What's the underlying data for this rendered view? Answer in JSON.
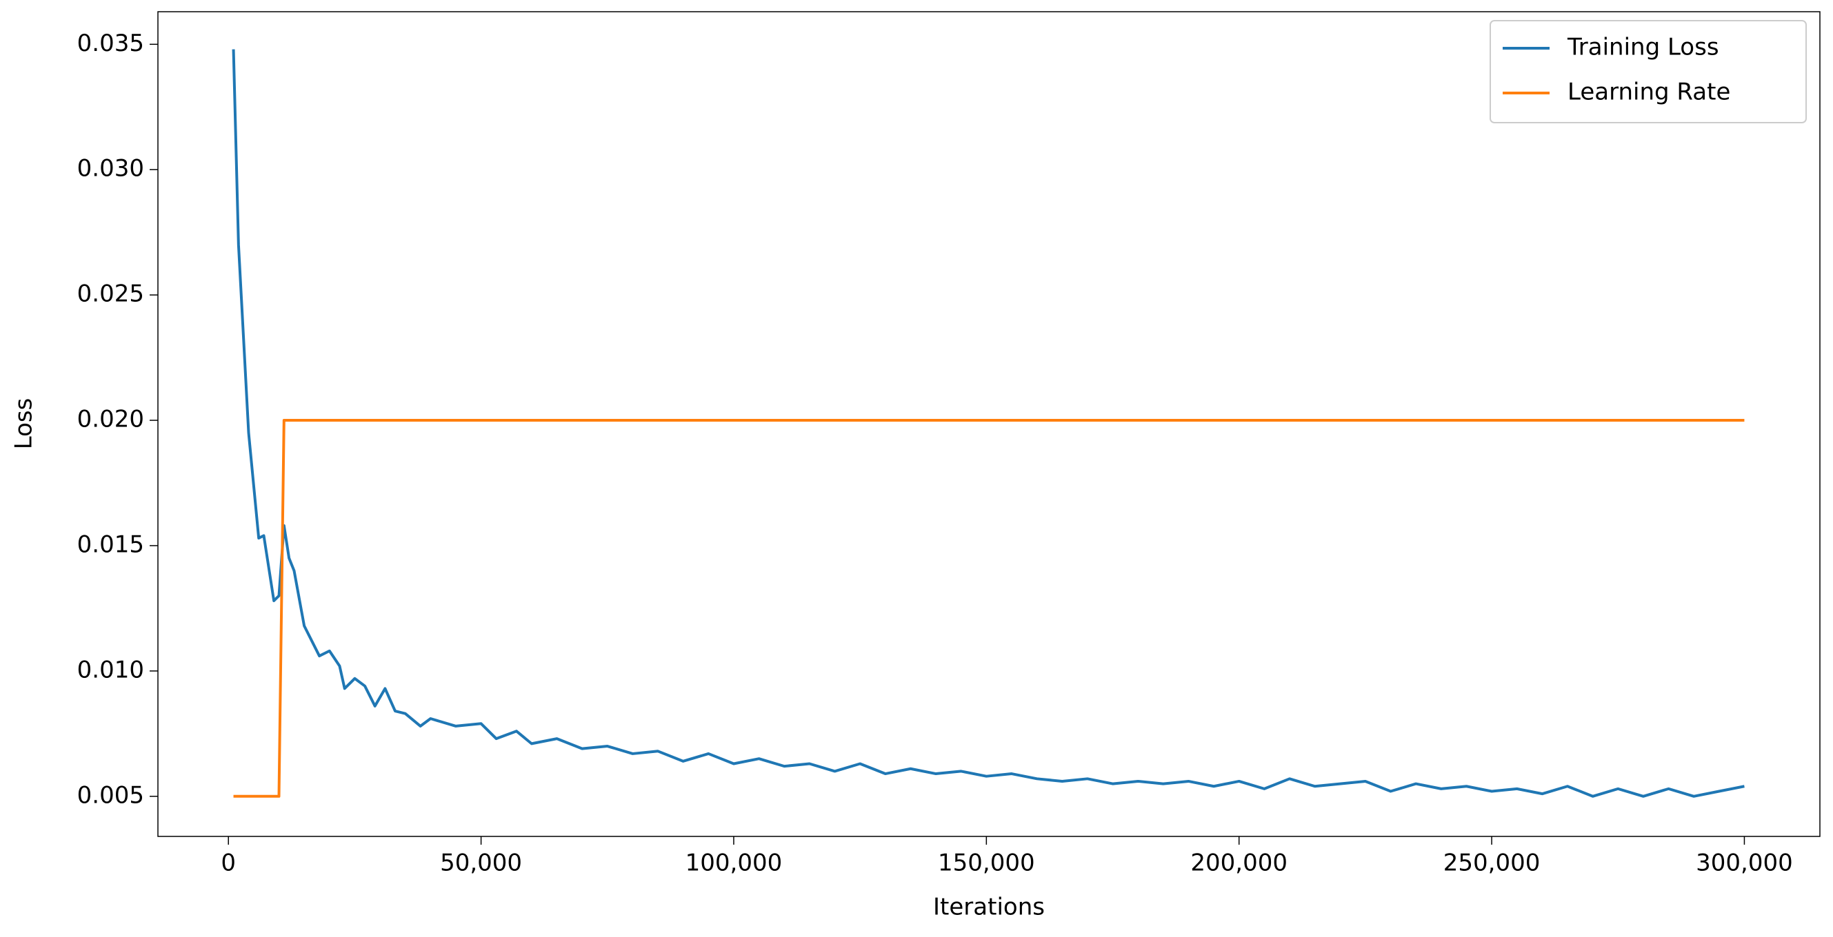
{
  "chart_data": {
    "type": "line",
    "x_label": "Iterations",
    "y_label": "Loss",
    "xlim": [
      -13950,
      314950
    ],
    "ylim": [
      0.0034,
      0.0363
    ],
    "xticks": [
      0,
      {
        "value": 50000,
        "label": "50,000"
      },
      {
        "value": 100000,
        "label": "100,000"
      },
      {
        "value": 150000,
        "label": "150,000"
      },
      {
        "value": 200000,
        "label": "200,000"
      },
      {
        "value": 250000,
        "label": "250,000"
      },
      {
        "value": 300000,
        "label": "300,000"
      }
    ],
    "yticks": [
      0.005,
      {
        "value": 0.01,
        "label": "0.010"
      },
      0.015,
      {
        "value": 0.02,
        "label": "0.020"
      },
      0.025,
      {
        "value": 0.03,
        "label": "0.030"
      },
      0.035
    ],
    "legend": "upper right",
    "series": [
      {
        "name": "Training Loss",
        "color": "#1f77b4",
        "x": [
          1000,
          2000,
          4000,
          6000,
          7000,
          9000,
          10000,
          11000,
          12000,
          13000,
          15000,
          18000,
          20000,
          22000,
          23000,
          25000,
          27000,
          29000,
          31000,
          33000,
          35000,
          38000,
          40000,
          45000,
          50000,
          53000,
          57000,
          60000,
          65000,
          70000,
          75000,
          80000,
          85000,
          90000,
          95000,
          100000,
          105000,
          110000,
          115000,
          120000,
          125000,
          130000,
          135000,
          140000,
          145000,
          150000,
          155000,
          160000,
          165000,
          170000,
          175000,
          180000,
          185000,
          190000,
          195000,
          200000,
          205000,
          210000,
          215000,
          220000,
          225000,
          230000,
          235000,
          240000,
          245000,
          250000,
          255000,
          260000,
          265000,
          270000,
          275000,
          280000,
          285000,
          290000,
          295000,
          300000
        ],
        "values": [
          0.0348,
          0.027,
          0.0195,
          0.0153,
          0.0154,
          0.0128,
          0.013,
          0.0158,
          0.0145,
          0.014,
          0.0118,
          0.0106,
          0.0108,
          0.0102,
          0.0093,
          0.0097,
          0.0094,
          0.0086,
          0.0093,
          0.0084,
          0.0083,
          0.0078,
          0.0081,
          0.0078,
          0.0079,
          0.0073,
          0.0076,
          0.0071,
          0.0073,
          0.0069,
          0.007,
          0.0067,
          0.0068,
          0.0064,
          0.0067,
          0.0063,
          0.0065,
          0.0062,
          0.0063,
          0.006,
          0.0063,
          0.0059,
          0.0061,
          0.0059,
          0.006,
          0.0058,
          0.0059,
          0.0057,
          0.0056,
          0.0057,
          0.0055,
          0.0056,
          0.0055,
          0.0056,
          0.0054,
          0.0056,
          0.0053,
          0.0057,
          0.0054,
          0.0055,
          0.0056,
          0.0052,
          0.0055,
          0.0053,
          0.0054,
          0.0052,
          0.0053,
          0.0051,
          0.0054,
          0.005,
          0.0053,
          0.005,
          0.0053,
          0.005,
          0.0052,
          0.0054
        ]
      },
      {
        "name": "Learning Rate",
        "color": "#ff7f0e",
        "x": [
          1000,
          10000,
          11000,
          300000
        ],
        "values": [
          0.005,
          0.005,
          0.02,
          0.02
        ]
      }
    ]
  }
}
